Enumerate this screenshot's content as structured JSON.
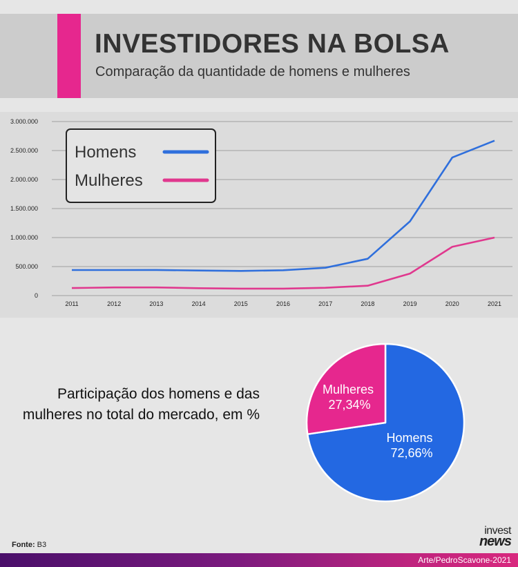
{
  "header": {
    "title": "INVESTIDORES NA BOLSA",
    "subtitle": "Comparação da quantidade de homens e mulheres",
    "accent_color": "#e6278e"
  },
  "chart_data": [
    {
      "type": "line",
      "x": [
        "2011",
        "2012",
        "2013",
        "2014",
        "2015",
        "2016",
        "2017",
        "2018",
        "2019",
        "2020",
        "2021"
      ],
      "series": [
        {
          "name": "Homens",
          "color": "#2f6fdc",
          "values": [
            440000,
            440000,
            442000,
            432000,
            425000,
            437000,
            480000,
            635000,
            1280000,
            2380000,
            2670000
          ]
        },
        {
          "name": "Mulheres",
          "color": "#e0388e",
          "values": [
            130000,
            140000,
            140000,
            127000,
            120000,
            120000,
            135000,
            170000,
            380000,
            840000,
            1000000
          ]
        }
      ],
      "y_ticks": [
        "0",
        "500.000",
        "1.000.000",
        "1.500.000",
        "2.000.000",
        "2.500.000",
        "3.000.000"
      ],
      "ylim": [
        0,
        3000000
      ],
      "grid": true,
      "legend": "top-left"
    },
    {
      "type": "pie",
      "caption": "Participação dos homens e das mulheres no total do mercado, em %",
      "slices": [
        {
          "label": "Homens",
          "value": 72.66,
          "value_label": "72,66%",
          "color": "#2368e2"
        },
        {
          "label": "Mulheres",
          "value": 27.34,
          "value_label": "27,34%",
          "color": "#e6278e"
        }
      ]
    }
  ],
  "footer": {
    "source_label": "Fonte:",
    "source_value": "B3",
    "logo_top": "invest",
    "logo_bottom": "news",
    "credit": "Arte/PedroScavone-2021"
  }
}
